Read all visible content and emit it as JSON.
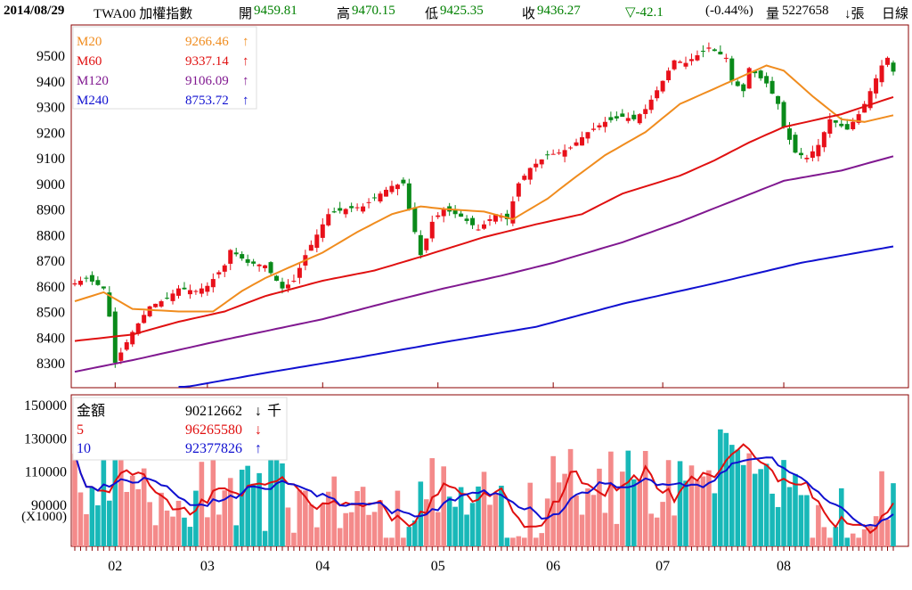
{
  "header": {
    "date": "2014/08/29",
    "symbol": "TWA00 加權指數",
    "open_label": "開",
    "open": "9459.81",
    "high_label": "高",
    "high": "9470.15",
    "low_label": "低",
    "low": "9425.35",
    "close_label": "收",
    "close": "9436.27",
    "change": "▽-42.1",
    "change_pct": "(-0.44%)",
    "volume_label": "量",
    "volume": "5227658",
    "volume_unit": "↓張",
    "period": "日線"
  },
  "colors": {
    "up": "#e8101a",
    "down": "#0a8a1a",
    "m20": "#f08c1e",
    "m60": "#e01010",
    "m120": "#801890",
    "m240": "#1010d0",
    "vol_up": "#f48a8a",
    "vol_down": "#18b8b8",
    "v5": "#e01010",
    "v10": "#1010d0",
    "frame": "#8b0000"
  },
  "chart_data": [
    {
      "type": "candlestick",
      "title": "TWA00 加權指數 日線",
      "ylim": [
        8200,
        9620
      ],
      "yticks": [
        "9500",
        "9400",
        "9300",
        "9200",
        "9100",
        "9000",
        "8900",
        "8800",
        "8700",
        "8600",
        "8500",
        "8400",
        "8300"
      ],
      "days": 143,
      "close_keypoints": [
        [
          0,
          8610
        ],
        [
          2,
          8630
        ],
        [
          5,
          8590
        ],
        [
          6,
          8480
        ],
        [
          7,
          8300
        ],
        [
          9,
          8380
        ],
        [
          10,
          8420
        ],
        [
          13,
          8520
        ],
        [
          16,
          8550
        ],
        [
          18,
          8590
        ],
        [
          21,
          8580
        ],
        [
          23,
          8600
        ],
        [
          26,
          8680
        ],
        [
          27,
          8740
        ],
        [
          30,
          8690
        ],
        [
          33,
          8680
        ],
        [
          36,
          8590
        ],
        [
          38,
          8620
        ],
        [
          40,
          8720
        ],
        [
          42,
          8800
        ],
        [
          44,
          8880
        ],
        [
          47,
          8900
        ],
        [
          50,
          8910
        ],
        [
          53,
          8960
        ],
        [
          55,
          8990
        ],
        [
          57,
          9000
        ],
        [
          58,
          8900
        ],
        [
          60,
          8720
        ],
        [
          62,
          8850
        ],
        [
          64,
          8900
        ],
        [
          67,
          8870
        ],
        [
          70,
          8820
        ],
        [
          73,
          8880
        ],
        [
          75,
          8860
        ],
        [
          77,
          9000
        ],
        [
          79,
          9060
        ],
        [
          82,
          9110
        ],
        [
          84,
          9120
        ],
        [
          86,
          9140
        ],
        [
          89,
          9200
        ],
        [
          92,
          9240
        ],
        [
          95,
          9260
        ],
        [
          97,
          9250
        ],
        [
          99,
          9290
        ],
        [
          102,
          9400
        ],
        [
          104,
          9480
        ],
        [
          106,
          9470
        ],
        [
          110,
          9530
        ],
        [
          113,
          9490
        ],
        [
          114,
          9400
        ],
        [
          116,
          9360
        ],
        [
          117,
          9450
        ],
        [
          120,
          9390
        ],
        [
          122,
          9310
        ],
        [
          123,
          9220
        ],
        [
          125,
          9120
        ],
        [
          127,
          9100
        ],
        [
          129,
          9150
        ],
        [
          131,
          9250
        ],
        [
          134,
          9210
        ],
        [
          136,
          9270
        ],
        [
          137,
          9310
        ],
        [
          140,
          9460
        ],
        [
          141,
          9490
        ],
        [
          142,
          9436
        ]
      ],
      "legend": [
        {
          "name": "M20",
          "value": "9266.46",
          "dir": "↑"
        },
        {
          "name": "M60",
          "value": "9337.14",
          "dir": "↑"
        },
        {
          "name": "M120",
          "value": "9106.09",
          "dir": "↑"
        },
        {
          "name": "M240",
          "value": "8753.72",
          "dir": "↑"
        }
      ],
      "ma_keypoints": {
        "M20": [
          [
            0,
            8540
          ],
          [
            5,
            8575
          ],
          [
            10,
            8510
          ],
          [
            18,
            8500
          ],
          [
            24,
            8500
          ],
          [
            29,
            8580
          ],
          [
            33,
            8630
          ],
          [
            38,
            8680
          ],
          [
            43,
            8730
          ],
          [
            49,
            8810
          ],
          [
            55,
            8880
          ],
          [
            60,
            8910
          ],
          [
            64,
            8900
          ],
          [
            71,
            8890
          ],
          [
            76,
            8860
          ],
          [
            82,
            8940
          ],
          [
            86,
            9010
          ],
          [
            92,
            9110
          ],
          [
            99,
            9200
          ],
          [
            105,
            9310
          ],
          [
            111,
            9370
          ],
          [
            115,
            9410
          ],
          [
            120,
            9460
          ],
          [
            123,
            9440
          ],
          [
            128,
            9340
          ],
          [
            133,
            9250
          ],
          [
            137,
            9240
          ],
          [
            142,
            9266
          ]
        ],
        "M60": [
          [
            0,
            8385
          ],
          [
            10,
            8410
          ],
          [
            18,
            8460
          ],
          [
            26,
            8500
          ],
          [
            33,
            8560
          ],
          [
            43,
            8620
          ],
          [
            52,
            8660
          ],
          [
            61,
            8720
          ],
          [
            71,
            8790
          ],
          [
            80,
            8840
          ],
          [
            88,
            8880
          ],
          [
            95,
            8960
          ],
          [
            105,
            9030
          ],
          [
            111,
            9090
          ],
          [
            117,
            9160
          ],
          [
            123,
            9220
          ],
          [
            133,
            9270
          ],
          [
            142,
            9337
          ]
        ],
        "M120": [
          [
            0,
            8265
          ],
          [
            10,
            8310
          ],
          [
            26,
            8390
          ],
          [
            43,
            8470
          ],
          [
            55,
            8540
          ],
          [
            64,
            8590
          ],
          [
            74,
            8640
          ],
          [
            83,
            8690
          ],
          [
            95,
            8770
          ],
          [
            105,
            8850
          ],
          [
            114,
            8930
          ],
          [
            123,
            9010
          ],
          [
            133,
            9050
          ],
          [
            142,
            9106
          ]
        ],
        "M240": [
          [
            18,
            8200
          ],
          [
            33,
            8260
          ],
          [
            49,
            8320
          ],
          [
            64,
            8380
          ],
          [
            80,
            8440
          ],
          [
            95,
            8530
          ],
          [
            111,
            8610
          ],
          [
            126,
            8690
          ],
          [
            142,
            8754
          ]
        ]
      }
    },
    {
      "type": "bar",
      "title": "金額",
      "unit_label": "(X1000)",
      "ylim": [
        65000,
        155000
      ],
      "yticks": [
        "150000",
        "130000",
        "110000",
        "90000"
      ],
      "legend": [
        {
          "name": "金額",
          "value": "90212662",
          "dir": "↓",
          "unit": "千"
        },
        {
          "name": "5",
          "value": "96265580",
          "dir": "↓"
        },
        {
          "name": "10",
          "value": "92377826",
          "dir": "↑"
        }
      ],
      "level_keypoints": [
        [
          0,
          104000
        ],
        [
          3,
          106000
        ],
        [
          6,
          97000
        ],
        [
          8,
          104000
        ],
        [
          11,
          96000
        ],
        [
          14,
          86000
        ],
        [
          18,
          88000
        ],
        [
          22,
          96000
        ],
        [
          26,
          104000
        ],
        [
          28,
          102000
        ],
        [
          32,
          100000
        ],
        [
          36,
          98000
        ],
        [
          42,
          94000
        ],
        [
          48,
          93000
        ],
        [
          52,
          91000
        ],
        [
          57,
          88000
        ],
        [
          60,
          95000
        ],
        [
          64,
          100000
        ],
        [
          67,
          98000
        ],
        [
          70,
          94000
        ],
        [
          74,
          88000
        ],
        [
          76,
          80000
        ],
        [
          79,
          86000
        ],
        [
          82,
          100000
        ],
        [
          86,
          106000
        ],
        [
          90,
          105000
        ],
        [
          94,
          104000
        ],
        [
          98,
          103000
        ],
        [
          102,
          106000
        ],
        [
          106,
          112000
        ],
        [
          110,
          115000
        ],
        [
          114,
          110000
        ],
        [
          118,
          106000
        ],
        [
          122,
          100000
        ],
        [
          126,
          96000
        ],
        [
          130,
          88000
        ],
        [
          134,
          86000
        ],
        [
          138,
          90000
        ],
        [
          142,
          92000
        ]
      ],
      "x_labels": [
        {
          "label": "02",
          "day": 7
        },
        {
          "label": "03",
          "day": 23
        },
        {
          "label": "04",
          "day": 43
        },
        {
          "label": "05",
          "day": 63
        },
        {
          "label": "06",
          "day": 83
        },
        {
          "label": "07",
          "day": 102
        },
        {
          "label": "08",
          "day": 123
        }
      ]
    }
  ]
}
